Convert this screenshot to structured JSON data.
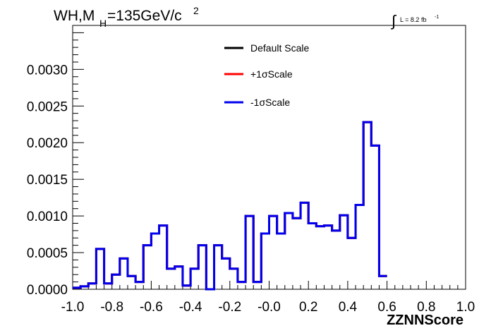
{
  "chart_data": {
    "type": "line",
    "title_main": "WH,M",
    "title_sub": "H",
    "title_rest": "=135GeV/c",
    "title_sup": "2",
    "lumi_label": "L = 8.2 fb",
    "lumi_sup": "-1",
    "xlabel": "ZZNNScore",
    "ylabel": "",
    "xlim": [
      -1.0,
      1.0
    ],
    "ylim": [
      0,
      0.0036
    ],
    "x_ticks": [
      "-1.0",
      "-0.8",
      "-0.6",
      "-0.4",
      "-0.2",
      "-0.0",
      "0.2",
      "0.4",
      "0.6",
      "0.8",
      "1.0"
    ],
    "y_ticks": [
      "0.0000",
      "0.0005",
      "0.0010",
      "0.0015",
      "0.0020",
      "0.0025",
      "0.0030"
    ],
    "bin_edges_start": -1.0,
    "bin_width": 0.04,
    "series": [
      {
        "name": "Default Scale",
        "color": "#000000",
        "values": [
          2e-05,
          4e-05,
          8e-05,
          0.00055,
          8e-05,
          0.0002,
          0.00042,
          0.00018,
          0.0001,
          0.0006,
          0.00076,
          0.00087,
          0.00028,
          0.00031,
          5e-05,
          0.00028,
          0.0006,
          0.0,
          0.0006,
          0.00042,
          0.00028,
          0.0001,
          0.001,
          0.0001,
          0.00076,
          0.001,
          0.00076,
          0.00104,
          0.00097,
          0.00118,
          0.0009,
          0.00086,
          0.00087,
          0.0008,
          0.00101,
          0.0007,
          0.00115,
          0.00228,
          0.00196,
          0.00018
        ]
      },
      {
        "name": "+1σScale",
        "color": "#ff0000",
        "values": [
          2e-05,
          4e-05,
          8e-05,
          0.00055,
          8e-05,
          0.0002,
          0.00042,
          0.00018,
          0.0001,
          0.0006,
          0.00076,
          0.00087,
          0.00028,
          0.00031,
          5e-05,
          0.00028,
          0.0006,
          0.0,
          0.0006,
          0.00042,
          0.00028,
          0.0001,
          0.001,
          0.0001,
          0.00076,
          0.001,
          0.00076,
          0.00104,
          0.00097,
          0.00118,
          0.0009,
          0.00086,
          0.00087,
          0.0008,
          0.00101,
          0.0007,
          0.00115,
          0.00228,
          0.00196,
          0.00018
        ]
      },
      {
        "name": "-1σScale",
        "color": "#0000ee",
        "values": [
          2e-05,
          4e-05,
          8e-05,
          0.00055,
          8e-05,
          0.0002,
          0.00042,
          0.00018,
          0.0001,
          0.0006,
          0.00076,
          0.00087,
          0.00028,
          0.00031,
          5e-05,
          0.00028,
          0.0006,
          0.0,
          0.0006,
          0.00042,
          0.00028,
          0.0001,
          0.001,
          0.0001,
          0.00076,
          0.001,
          0.00076,
          0.00104,
          0.00097,
          0.00118,
          0.0009,
          0.00086,
          0.00087,
          0.0008,
          0.00101,
          0.0007,
          0.00115,
          0.00228,
          0.00196,
          0.00018
        ]
      }
    ],
    "grid": false,
    "legend_position": "top-center"
  }
}
